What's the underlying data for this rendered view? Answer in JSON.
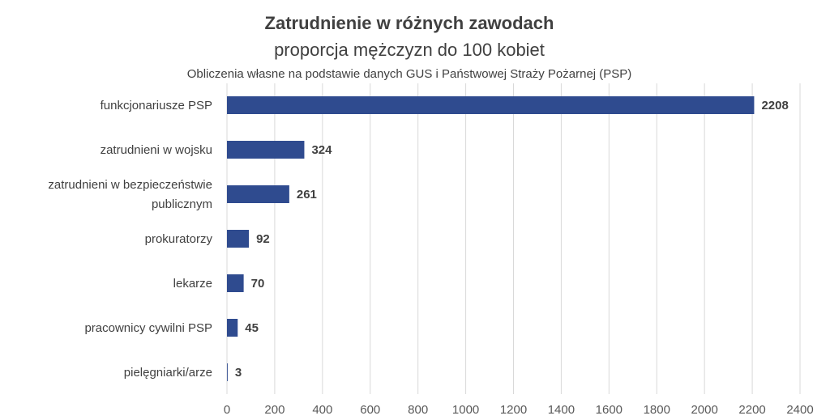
{
  "chart_data": {
    "type": "bar",
    "orientation": "horizontal",
    "title": "Zatrudnienie w różnych zawodach",
    "subtitle": "proporcja mężczyzn do 100 kobiet",
    "note": "Obliczenia własne na podstawie danych GUS i Państwowej Straży Pożarnej (PSP)",
    "categories": [
      [
        "funkcjonariusze PSP"
      ],
      [
        "zatrudnieni w wojsku"
      ],
      [
        "zatrudnieni w bezpieczeństwie",
        "publicznym"
      ],
      [
        "prokuratorzy"
      ],
      [
        "lekarze"
      ],
      [
        "pracownicy cywilni PSP"
      ],
      [
        "pielęgniarki/arze"
      ]
    ],
    "values": [
      2208,
      324,
      261,
      92,
      70,
      45,
      3
    ],
    "xlim": [
      0,
      2400
    ],
    "xticks": [
      0,
      200,
      400,
      600,
      800,
      1000,
      1200,
      1400,
      1600,
      1800,
      2000,
      2200,
      2400
    ],
    "grid": "vertical",
    "legend": "none",
    "bar_color": "#2F4B8F",
    "grid_color": "#D9D9D9"
  }
}
